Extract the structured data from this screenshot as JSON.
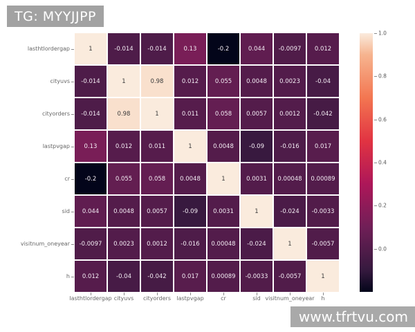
{
  "title_badge": {
    "text": "TG: MYYJJPP"
  },
  "watermark": {
    "text": "www.tfrtvu.com"
  },
  "colors": {
    "background": "#ffffff",
    "badge_bg": "#a2a2a2",
    "badge_text": "#ffffff",
    "watermark_bg": "#a9a9a9",
    "watermark_text": "#ffffff",
    "axis_label": "#666666",
    "tick_mark": "#8a8a8a",
    "annot_light": "#f3ecf3",
    "annot_dark": "#3a3a3a"
  },
  "chart_data": {
    "type": "heatmap",
    "title": "TG: MYYJJPP",
    "labels": [
      "lasthtlordergap",
      "cityuvs",
      "cityorders",
      "lastpvgap",
      "cr",
      "sid",
      "visitnum_oneyear",
      "h"
    ],
    "matrix": [
      [
        1,
        -0.014,
        -0.014,
        0.13,
        -0.2,
        0.044,
        -0.0097,
        0.012
      ],
      [
        -0.014,
        1,
        0.98,
        0.012,
        0.055,
        0.0048,
        0.0023,
        -0.04
      ],
      [
        -0.014,
        0.98,
        1,
        0.011,
        0.058,
        0.0057,
        0.0012,
        -0.042
      ],
      [
        0.13,
        0.012,
        0.011,
        1,
        0.0048,
        -0.09,
        -0.016,
        0.017
      ],
      [
        -0.2,
        0.055,
        0.058,
        0.0048,
        1,
        0.0031,
        0.00048,
        0.00089
      ],
      [
        0.044,
        0.0048,
        0.0057,
        -0.09,
        0.0031,
        1,
        -0.024,
        -0.0033
      ],
      [
        -0.0097,
        0.0023,
        0.0012,
        -0.016,
        0.00048,
        -0.024,
        1,
        -0.0057
      ],
      [
        0.012,
        -0.04,
        -0.042,
        0.017,
        0.00089,
        -0.0033,
        -0.0057,
        1
      ]
    ],
    "vmin": -0.2,
    "vmax": 1.0,
    "annotations": true,
    "grid": false,
    "legend_position": "right",
    "colormap": "rocket",
    "colormap_stops": [
      [
        0.0,
        "#03051A"
      ],
      [
        0.083,
        "#35193E"
      ],
      [
        0.25,
        "#701F57"
      ],
      [
        0.417,
        "#AD1759"
      ],
      [
        0.583,
        "#E13342"
      ],
      [
        0.75,
        "#F37651"
      ],
      [
        0.917,
        "#F6B48F"
      ],
      [
        1.0,
        "#FAEBDD"
      ]
    ],
    "colorbar_ticks": [
      "1.0",
      "0.8",
      "0.6",
      "0.4",
      "0.2",
      "0.0"
    ]
  }
}
